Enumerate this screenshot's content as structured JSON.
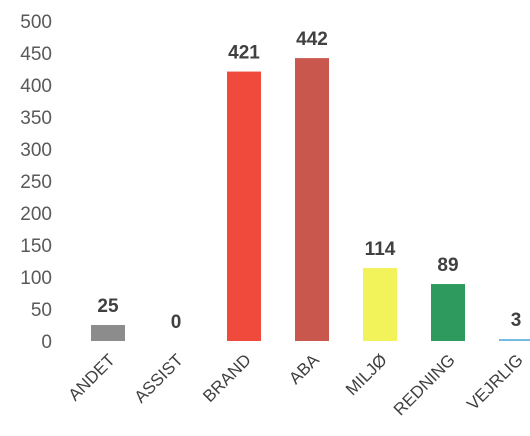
{
  "chart_data": {
    "type": "bar",
    "title": "",
    "xlabel": "",
    "ylabel": "",
    "ylim": [
      0,
      500
    ],
    "yticks": [
      0,
      50,
      100,
      150,
      200,
      250,
      300,
      350,
      400,
      450,
      500
    ],
    "grid": false,
    "legend": "none",
    "categories": [
      "ANDET",
      "ASSIST",
      "BRAND",
      "ABA",
      "MILJØ",
      "REDNING",
      "VEJRLIG"
    ],
    "values": [
      25,
      0,
      421,
      442,
      114,
      89,
      3
    ],
    "data_labels": [
      "25",
      "0",
      "421",
      "442",
      "114",
      "89",
      "3"
    ],
    "colors": [
      "#8c8c8c",
      "#b0b0b0",
      "#f04a3c",
      "#c9574d",
      "#f2f25a",
      "#2e9a5e",
      "#6fb7e0"
    ]
  }
}
